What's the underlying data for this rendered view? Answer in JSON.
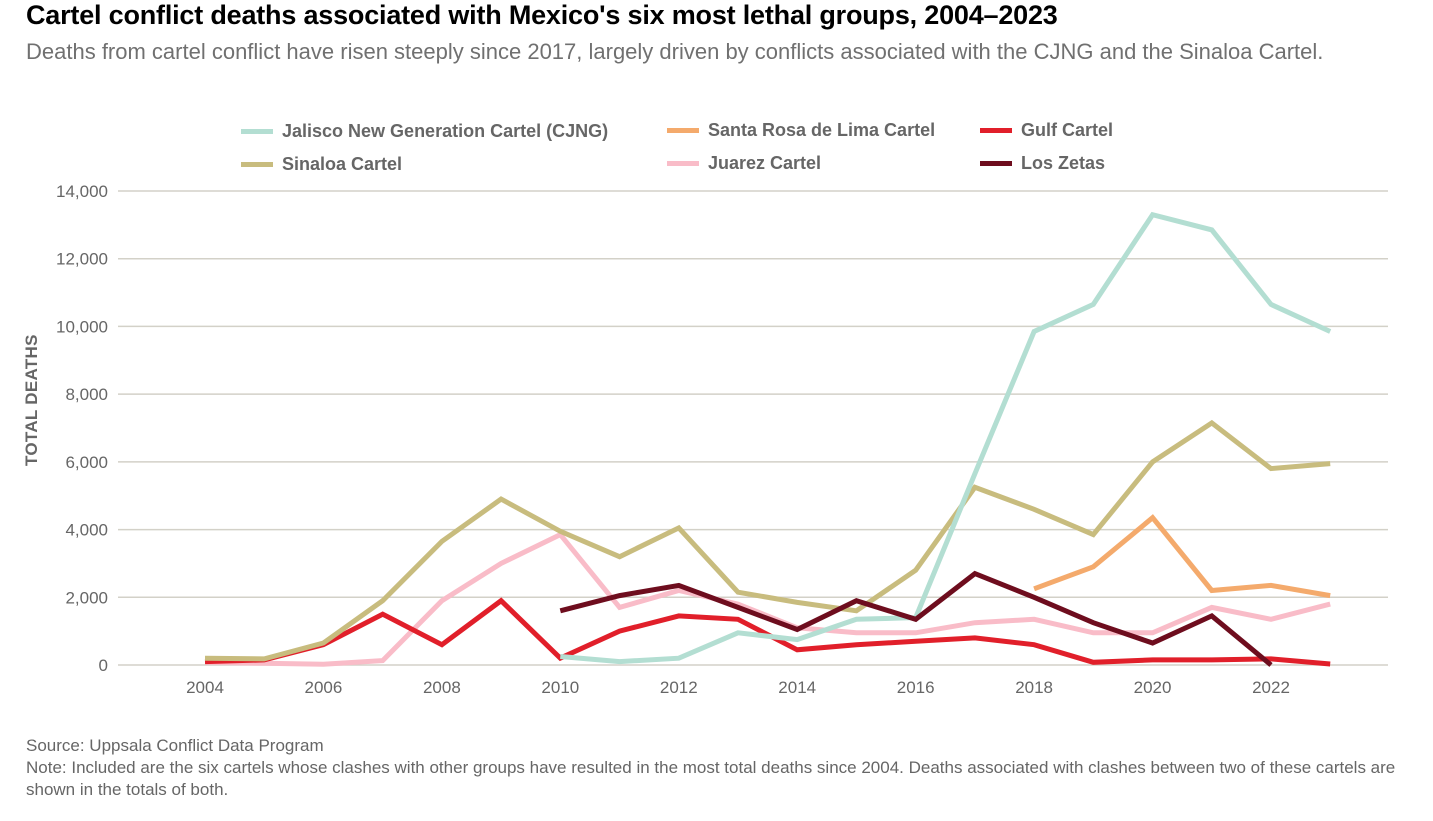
{
  "title": "Cartel conflict deaths associated with Mexico's six most lethal groups, 2004–2023",
  "subtitle": "Deaths from cartel conflict have risen steeply since 2017, largely driven by conflicts associated with the CJNG and the Sinaloa Cartel.",
  "source": "Source: Uppsala Conflict Data Program",
  "note": "Note: Included are the six cartels whose clashes with other groups have resulted in the most total deaths since 2004. Deaths associated with clashes between two of these cartels are shown in the totals of both.",
  "chart_data": {
    "type": "line",
    "title": "Cartel conflict deaths associated with Mexico's six most lethal groups, 2004–2023",
    "xlabel": "",
    "ylabel": "TOTAL DEATHS",
    "xlim": [
      2003.5,
      2024.0
    ],
    "ylim": [
      0,
      14000
    ],
    "grid": true,
    "legend_position": "top",
    "x_ticks": [
      2004,
      2006,
      2008,
      2010,
      2012,
      2014,
      2016,
      2018,
      2020,
      2022
    ],
    "x_tick_labels": [
      "2004",
      "2006",
      "2008",
      "2010",
      "2012",
      "2014",
      "2016",
      "2018",
      "2020",
      "2022"
    ],
    "y_ticks": [
      0,
      2000,
      4000,
      6000,
      8000,
      10000,
      12000,
      14000
    ],
    "y_tick_labels": [
      "0",
      "2,000",
      "4,000",
      "6,000",
      "8,000",
      "10,000",
      "12,000",
      "14,000"
    ],
    "series": [
      {
        "name": "Pink",
        "label": "Juarez Cartel",
        "color": "#f9bcc8",
        "x": [
          2004,
          2005,
          2006,
          2007,
          2008,
          2009,
          2010,
          2011,
          2012,
          2013,
          2014,
          2015,
          2016,
          2017,
          2018,
          2019,
          2020,
          2021,
          2022,
          2023
        ],
        "values": [
          80,
          50,
          20,
          130,
          1900,
          3000,
          3850,
          1700,
          2200,
          1800,
          1100,
          950,
          950,
          1250,
          1350,
          950,
          950,
          1700,
          1350,
          1800
        ]
      },
      {
        "name": "Gulf",
        "label": "Gulf Cartel",
        "color": "#e11f2a",
        "x": [
          2004,
          2005,
          2006,
          2007,
          2008,
          2009,
          2010,
          2011,
          2012,
          2013,
          2014,
          2015,
          2016,
          2017,
          2018,
          2019,
          2020,
          2021,
          2022,
          2023
        ],
        "values": [
          100,
          150,
          600,
          1500,
          600,
          1900,
          200,
          1000,
          1450,
          1350,
          450,
          600,
          700,
          800,
          600,
          80,
          150,
          150,
          180,
          30
        ]
      },
      {
        "name": "Sinaloa",
        "label": "Sinaloa Cartel",
        "color": "#c8bc7e",
        "x": [
          2004,
          2005,
          2006,
          2007,
          2008,
          2009,
          2010,
          2011,
          2012,
          2013,
          2014,
          2015,
          2016,
          2017,
          2018,
          2019,
          2020,
          2021,
          2022,
          2023
        ],
        "values": [
          200,
          180,
          650,
          1900,
          3650,
          4900,
          3950,
          3200,
          4050,
          2150,
          1850,
          1600,
          2800,
          5250,
          4600,
          3850,
          6000,
          7150,
          5800,
          5950
        ]
      },
      {
        "name": "CJNG",
        "label": "Jalisco New Generation Cartel (CJNG)",
        "color": "#b3ded2",
        "x": [
          2010,
          2011,
          2012,
          2013,
          2014,
          2015,
          2016,
          2017,
          2018,
          2019,
          2020,
          2021,
          2022,
          2023
        ],
        "values": [
          250,
          100,
          200,
          950,
          750,
          1350,
          1400,
          5650,
          9850,
          10650,
          13300,
          12850,
          10650,
          9850
        ]
      },
      {
        "name": "Zetas",
        "label": "Los Zetas",
        "color": "#6e0d1e",
        "x": [
          2010,
          2011,
          2012,
          2013,
          2014,
          2015,
          2016,
          2017,
          2018,
          2019,
          2020,
          2021,
          2022
        ],
        "values": [
          1600,
          2050,
          2350,
          1700,
          1050,
          1900,
          1350,
          2700,
          2000,
          1250,
          650,
          1450,
          0
        ]
      },
      {
        "name": "SantaRosa",
        "label": "Santa Rosa de Lima Cartel",
        "color": "#f4aa6c",
        "x": [
          2018,
          2019,
          2020,
          2021,
          2022,
          2023
        ],
        "values": [
          2250,
          2900,
          4350,
          2200,
          2350,
          2050
        ]
      }
    ]
  },
  "legend": [
    {
      "label": "Jalisco New Generation Cartel (CJNG)",
      "color": "#b3ded2"
    },
    {
      "label": "Santa Rosa de Lima Cartel",
      "color": "#f4aa6c"
    },
    {
      "label": "Gulf Cartel",
      "color": "#e11f2a"
    },
    {
      "label": "Sinaloa Cartel",
      "color": "#c8bc7e"
    },
    {
      "label": "Juarez Cartel",
      "color": "#f9bcc8"
    },
    {
      "label": "Los Zetas",
      "color": "#6e0d1e"
    }
  ]
}
